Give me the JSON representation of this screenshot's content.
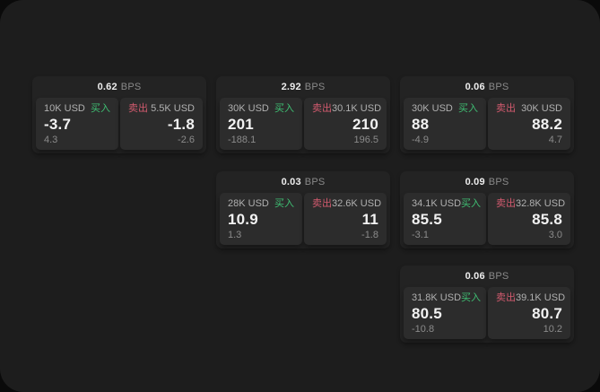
{
  "labels": {
    "unit": "BPS",
    "buy": "买入",
    "sell": "卖出"
  },
  "colors": {
    "background": "#0a0a0a",
    "panel": "#1d1d1d",
    "card": "#232323",
    "tile": "#2c2c2c",
    "buy": "#3fbf73",
    "sell": "#d25a6e"
  },
  "cards": [
    {
      "bps": "0.62",
      "slot": {
        "row": 1,
        "col": 1
      },
      "buy": {
        "amount": "10K USD",
        "value": "-3.7",
        "change": "4.3"
      },
      "sell": {
        "amount": "5.5K USD",
        "value": "-1.8",
        "change": "-2.6"
      }
    },
    {
      "bps": "2.92",
      "slot": {
        "row": 1,
        "col": 2
      },
      "buy": {
        "amount": "30K USD",
        "value": "201",
        "change": "-188.1"
      },
      "sell": {
        "amount": "30.1K USD",
        "value": "210",
        "change": "196.5"
      }
    },
    {
      "bps": "0.06",
      "slot": {
        "row": 1,
        "col": 3
      },
      "buy": {
        "amount": "30K USD",
        "value": "88",
        "change": "-4.9"
      },
      "sell": {
        "amount": "30K USD",
        "value": "88.2",
        "change": "4.7"
      }
    },
    {
      "bps": "0.03",
      "slot": {
        "row": 2,
        "col": 2
      },
      "buy": {
        "amount": "28K USD",
        "value": "10.9",
        "change": "1.3"
      },
      "sell": {
        "amount": "32.6K USD",
        "value": "11",
        "change": "-1.8"
      }
    },
    {
      "bps": "0.09",
      "slot": {
        "row": 2,
        "col": 3
      },
      "buy": {
        "amount": "34.1K USD",
        "value": "85.5",
        "change": "-3.1"
      },
      "sell": {
        "amount": "32.8K USD",
        "value": "85.8",
        "change": "3.0"
      }
    },
    {
      "bps": "0.06",
      "slot": {
        "row": 3,
        "col": 3
      },
      "buy": {
        "amount": "31.8K USD",
        "value": "80.5",
        "change": "-10.8"
      },
      "sell": {
        "amount": "39.1K USD",
        "value": "80.7",
        "change": "10.2"
      }
    }
  ]
}
